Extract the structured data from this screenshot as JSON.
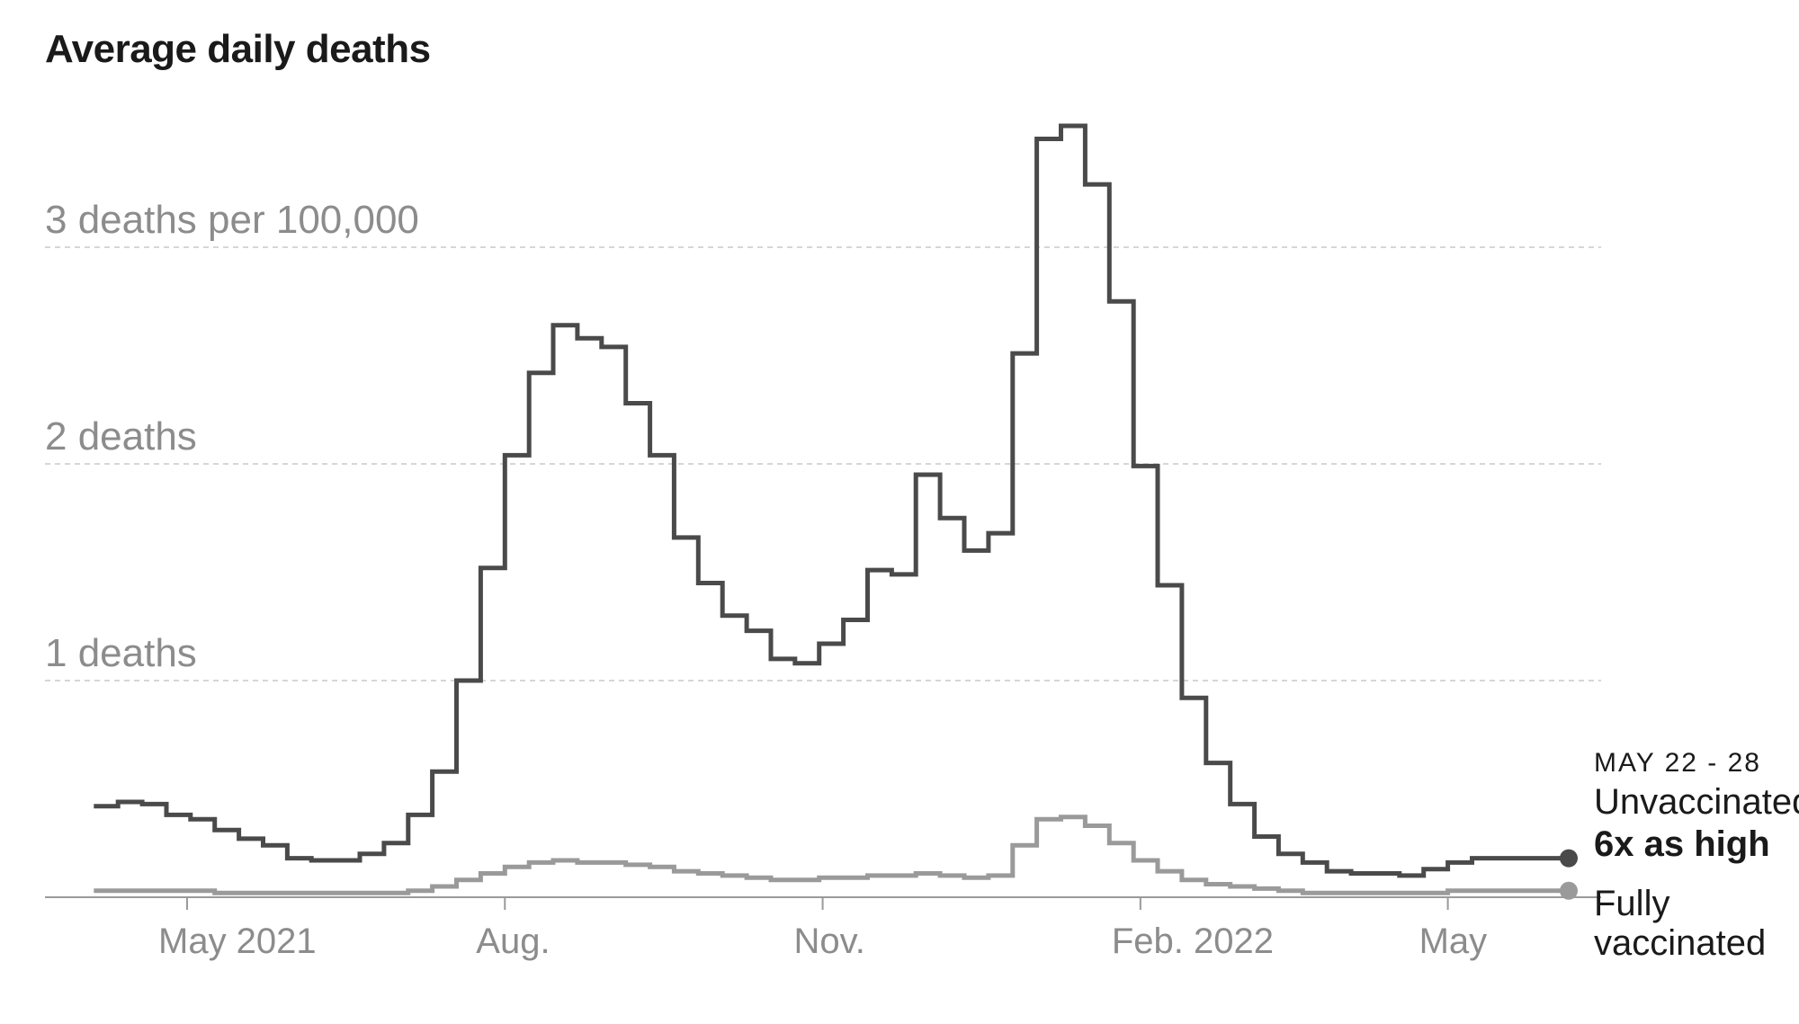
{
  "chart_data": {
    "type": "line",
    "title": "Average daily deaths",
    "xlabel": "",
    "ylabel": "",
    "ylim": [
      0,
      3.6
    ],
    "y_ticks": [
      {
        "value": 1,
        "label": "1 deaths"
      },
      {
        "value": 2,
        "label": "2 deaths"
      },
      {
        "value": 3,
        "label": "3 deaths per 100,000"
      }
    ],
    "x_ticks": [
      {
        "date": "2021-05-01",
        "label": "May 2021"
      },
      {
        "date": "2021-08-01",
        "label": "Aug."
      },
      {
        "date": "2021-11-01",
        "label": "Nov."
      },
      {
        "date": "2022-02-01",
        "label": "Feb. 2022"
      },
      {
        "date": "2022-05-01",
        "label": "May"
      }
    ],
    "grid": "dashed horizontal",
    "step": "weekly",
    "x_start": "2021-04-04",
    "series": [
      {
        "name": "Unvaccinated",
        "color": "#4a4a4a",
        "values": [
          0.42,
          0.44,
          0.43,
          0.38,
          0.36,
          0.31,
          0.27,
          0.24,
          0.18,
          0.17,
          0.17,
          0.2,
          0.25,
          0.38,
          0.58,
          1.0,
          1.52,
          2.04,
          2.42,
          2.64,
          2.58,
          2.54,
          2.28,
          2.04,
          1.66,
          1.45,
          1.3,
          1.23,
          1.1,
          1.08,
          1.17,
          1.28,
          1.51,
          1.49,
          1.95,
          1.75,
          1.6,
          1.68,
          2.51,
          3.5,
          3.56,
          3.29,
          2.75,
          1.99,
          1.44,
          0.92,
          0.62,
          0.43,
          0.28,
          0.2,
          0.16,
          0.12,
          0.11,
          0.11,
          0.1,
          0.13,
          0.16,
          0.18,
          0.18,
          0.18,
          0.18
        ]
      },
      {
        "name": "Fully vaccinated",
        "color": "#9a9a9a",
        "values": [
          0.03,
          0.03,
          0.03,
          0.03,
          0.03,
          0.02,
          0.02,
          0.02,
          0.02,
          0.02,
          0.02,
          0.02,
          0.02,
          0.03,
          0.05,
          0.08,
          0.11,
          0.14,
          0.16,
          0.17,
          0.16,
          0.16,
          0.15,
          0.14,
          0.12,
          0.11,
          0.1,
          0.09,
          0.08,
          0.08,
          0.09,
          0.09,
          0.1,
          0.1,
          0.11,
          0.1,
          0.09,
          0.1,
          0.24,
          0.36,
          0.37,
          0.33,
          0.25,
          0.17,
          0.12,
          0.08,
          0.06,
          0.05,
          0.04,
          0.03,
          0.02,
          0.02,
          0.02,
          0.02,
          0.02,
          0.02,
          0.03,
          0.03,
          0.03,
          0.03,
          0.03
        ]
      }
    ],
    "annotation": {
      "date_label": "MAY 22 - 28",
      "unvaccinated_label": "Unvaccinated",
      "ratio_label": "6x as high",
      "vaccinated_label_line1": "Fully",
      "vaccinated_label_line2": "vaccinated"
    }
  }
}
